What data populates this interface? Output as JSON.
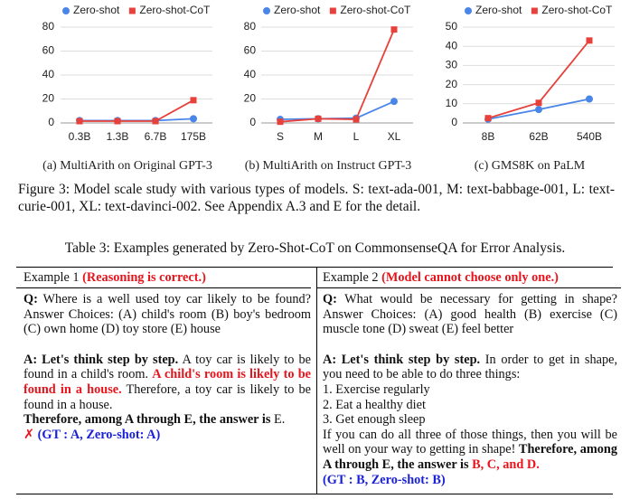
{
  "chart_data": [
    {
      "type": "line",
      "caption": "(a) MultiArith on Original GPT-3",
      "categories": [
        "0.3B",
        "1.3B",
        "6.7B",
        "175B"
      ],
      "series": [
        {
          "name": "Zero-shot",
          "color": "#4a86e8",
          "marker": "circle",
          "values": [
            2,
            2,
            2,
            3.5
          ]
        },
        {
          "name": "Zero-shot-CoT",
          "color": "#e8403a",
          "marker": "square",
          "values": [
            1.5,
            1.5,
            1.5,
            19
          ]
        }
      ],
      "ylim": [
        0,
        80
      ],
      "yticks": [
        0,
        20,
        40,
        60,
        80
      ],
      "grid": true
    },
    {
      "type": "line",
      "caption": "(b) MultiArith on Instruct GPT-3",
      "categories": [
        "S",
        "M",
        "L",
        "XL"
      ],
      "series": [
        {
          "name": "Zero-shot",
          "color": "#4a86e8",
          "marker": "circle",
          "values": [
            3,
            3.5,
            4,
            18
          ]
        },
        {
          "name": "Zero-shot-CoT",
          "color": "#e8403a",
          "marker": "square",
          "values": [
            1,
            3.5,
            3,
            78
          ]
        }
      ],
      "ylim": [
        0,
        80
      ],
      "yticks": [
        0,
        20,
        40,
        60,
        80
      ],
      "grid": true
    },
    {
      "type": "line",
      "caption": "(c) GMS8K on PaLM",
      "categories": [
        "8B",
        "62B",
        "540B"
      ],
      "series": [
        {
          "name": "Zero-shot",
          "color": "#4a86e8",
          "marker": "circle",
          "values": [
            2,
            7,
            12.5
          ]
        },
        {
          "name": "Zero-shot-CoT",
          "color": "#e8403a",
          "marker": "square",
          "values": [
            2.5,
            10.5,
            43
          ]
        }
      ],
      "ylim": [
        0,
        50
      ],
      "yticks": [
        0,
        10,
        20,
        30,
        40,
        50
      ],
      "grid": true
    }
  ],
  "figure_caption": "Figure 3: Model scale study with various types of models. S: text-ada-001, M: text-babbage-001, L: text-curie-001, XL: text-davinci-002. See Appendix A.3 and E for the detail.",
  "table": {
    "caption": "Table 3: Examples generated by Zero-Shot-CoT on CommonsenseQA for Error Analysis.",
    "columns": [
      {
        "header": "Example 1",
        "note": "(Reasoning is correct.)",
        "question_label": "Q:",
        "question": "Where is a well used toy car likely to be found? Answer Choices: (A) child's room (B) boy's bedroom (C) own home (D) toy store (E) house",
        "answer": [
          "A: Let's think step by step.",
          "A toy car is likely to be found in a child's room.",
          "A child's room is likely to be found in a house.",
          "Therefore, a toy car is likely to be found in a house.",
          "Therefore, among A through E, the answer is",
          "E.",
          "✗",
          "(GT : A, Zero-shot: A)"
        ]
      },
      {
        "header": "Example 2",
        "note": "(Model cannot choose only one.)",
        "question_label": "Q:",
        "question": "What would be necessary for getting in shape? Answer Choices: (A) good health (B) exercise (C) muscle tone (D) sweat (E) feel better",
        "answer": [
          "A: Let's think step by step.",
          "In order to get in shape, you need to be able to do three things:",
          "1. Exercise regularly",
          "2. Eat a healthy diet",
          "3. Get enough sleep",
          "If you can do all three of those things, then you will be well on your way to getting in shape!",
          "Therefore, among A through E, the answer is",
          "B, C, and D.",
          "(GT : B, Zero-shot: B)"
        ]
      }
    ]
  }
}
